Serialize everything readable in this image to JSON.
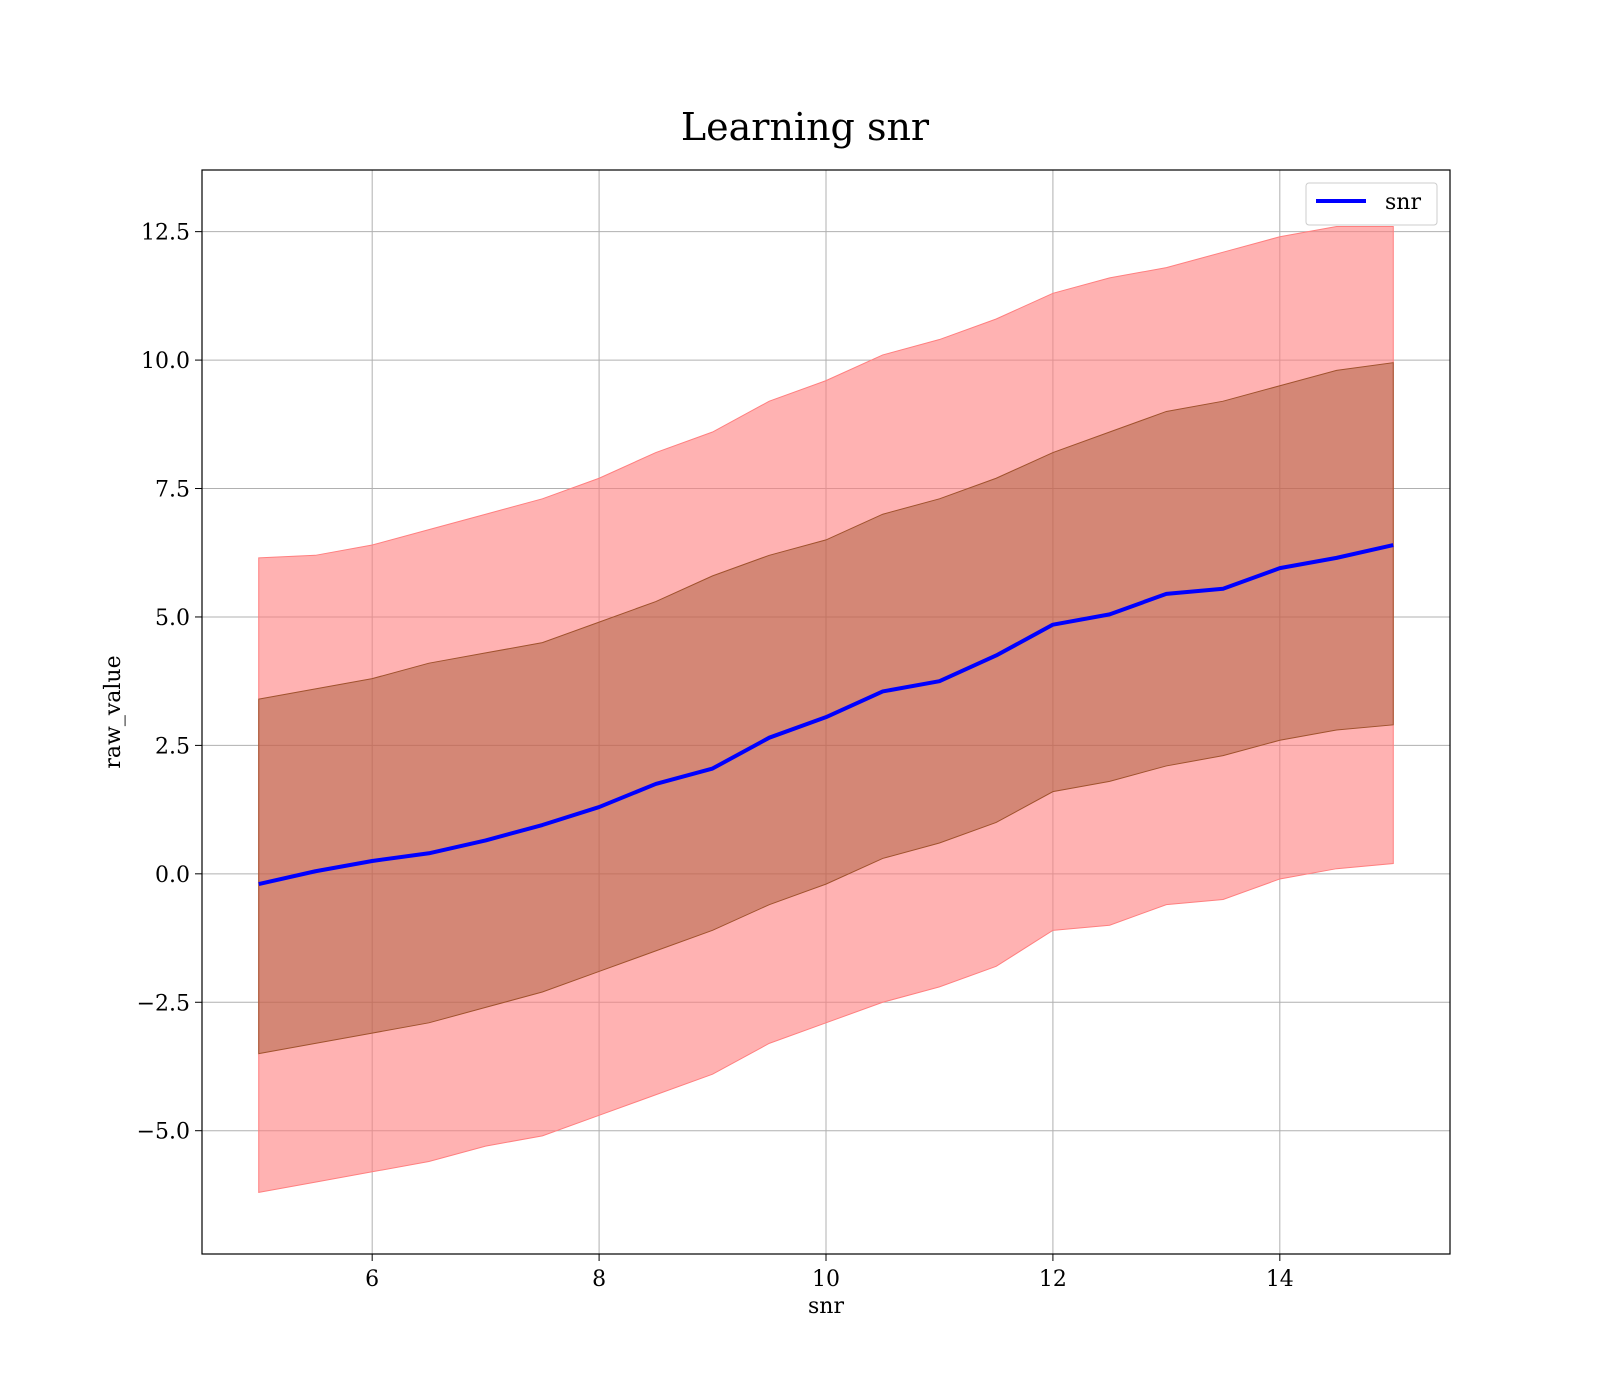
{
  "chart_data": {
    "type": "line",
    "title": "Learning snr",
    "xlabel": "snr",
    "ylabel": "raw_value",
    "xlim": [
      4.5,
      15.5
    ],
    "ylim": [
      -7.4,
      13.7
    ],
    "xticks": [
      6,
      8,
      10,
      12,
      14
    ],
    "yticks": [
      -5.0,
      -2.5,
      0.0,
      2.5,
      5.0,
      7.5,
      10.0,
      12.5
    ],
    "xtick_labels": [
      "6",
      "8",
      "10",
      "12",
      "14"
    ],
    "ytick_labels": [
      "−5.0",
      "−2.5",
      "0.0",
      "2.5",
      "5.0",
      "7.5",
      "10.0",
      "12.5"
    ],
    "grid": true,
    "legend": {
      "placement": "top-right",
      "entries": [
        "snr"
      ]
    },
    "colors": {
      "line": "#0000ff",
      "outer_band": "#ff7f7f",
      "inner_band": "#a0522d",
      "grid": "#b0b0b0"
    },
    "x": [
      5.0,
      5.5,
      6.0,
      6.5,
      7.0,
      7.5,
      8.0,
      8.5,
      9.0,
      9.5,
      10.0,
      10.5,
      11.0,
      11.5,
      12.0,
      12.5,
      13.0,
      13.5,
      14.0,
      14.5,
      15.0
    ],
    "series": [
      {
        "name": "snr",
        "values": [
          -0.2,
          0.05,
          0.25,
          0.4,
          0.65,
          0.95,
          1.3,
          1.75,
          2.05,
          2.65,
          3.05,
          3.55,
          3.75,
          4.25,
          4.85,
          5.05,
          5.45,
          5.55,
          5.95,
          6.15,
          6.4
        ]
      }
    ],
    "bands": [
      {
        "band": "outer",
        "lower": [
          -6.2,
          -6.0,
          -5.8,
          -5.6,
          -5.3,
          -5.1,
          -4.7,
          -4.3,
          -3.9,
          -3.3,
          -2.9,
          -2.5,
          -2.2,
          -1.8,
          -1.1,
          -1.0,
          -0.6,
          -0.5,
          -0.1,
          0.1,
          0.2
        ],
        "upper": [
          6.15,
          6.2,
          6.4,
          6.7,
          7.0,
          7.3,
          7.7,
          8.2,
          8.6,
          9.2,
          9.6,
          10.1,
          10.4,
          10.8,
          11.3,
          11.6,
          11.8,
          12.1,
          12.4,
          12.6,
          12.6
        ]
      },
      {
        "band": "inner",
        "lower": [
          -3.5,
          -3.3,
          -3.1,
          -2.9,
          -2.6,
          -2.3,
          -1.9,
          -1.5,
          -1.1,
          -0.6,
          -0.2,
          0.3,
          0.6,
          1.0,
          1.6,
          1.8,
          2.1,
          2.3,
          2.6,
          2.8,
          2.9
        ],
        "upper": [
          3.4,
          3.6,
          3.8,
          4.1,
          4.3,
          4.5,
          4.9,
          5.3,
          5.8,
          6.2,
          6.5,
          7.0,
          7.3,
          7.7,
          8.2,
          8.6,
          9.0,
          9.2,
          9.5,
          9.8,
          9.95
        ]
      }
    ]
  }
}
